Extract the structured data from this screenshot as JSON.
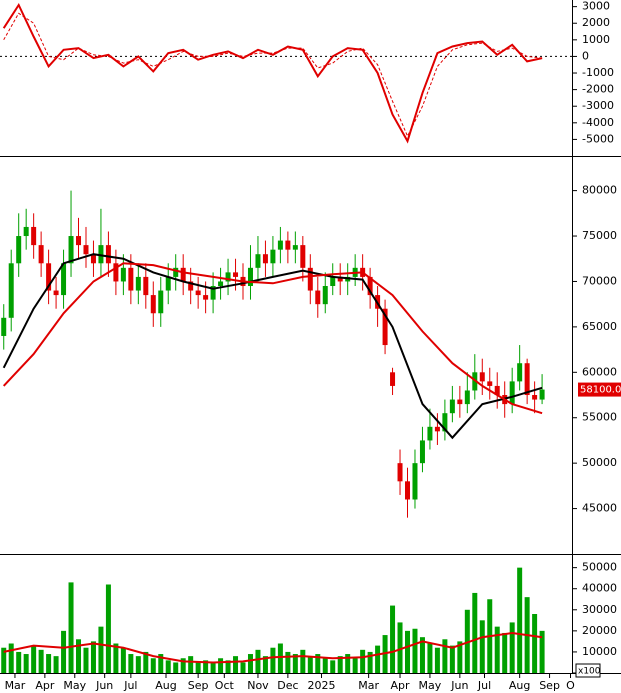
{
  "chart_data": [
    {
      "type": "line",
      "xlim": [
        -0.5,
        76
      ],
      "x": [
        0,
        2,
        4,
        6,
        8,
        10,
        12,
        14,
        16,
        18,
        20,
        22,
        24,
        26,
        28,
        30,
        32,
        34,
        36,
        38,
        40,
        42,
        44,
        46,
        48,
        50,
        52,
        54,
        56,
        58,
        60,
        62,
        64,
        66,
        68,
        70,
        72
      ],
      "series": [
        {
          "color": "#e00000",
          "dashed": false,
          "values": [
            1700,
            3100,
            1200,
            -600,
            400,
            500,
            -100,
            100,
            -600,
            0,
            -900,
            200,
            400,
            -200,
            100,
            300,
            -100,
            400,
            100,
            600,
            400,
            -1200,
            0,
            500,
            400,
            -1000,
            -3500,
            -5100,
            -2200,
            200,
            600,
            800,
            900,
            100,
            700,
            -300,
            -100
          ]
        },
        {
          "color": "#e00000",
          "dashed": true,
          "values": [
            1000,
            2600,
            2000,
            0,
            -200,
            500,
            100,
            0,
            -400,
            -200,
            -600,
            -200,
            300,
            0,
            0,
            200,
            0,
            200,
            200,
            500,
            500,
            -700,
            -400,
            300,
            500,
            -500,
            -2700,
            -4800,
            -3000,
            -600,
            400,
            700,
            800,
            300,
            500,
            0,
            -100
          ]
        }
      ],
      "reference_line": 0,
      "ylim": [
        -6000,
        3400
      ],
      "yticks": [
        3000,
        2000,
        1000,
        0,
        -1000,
        -2000,
        -3000,
        -4000,
        -5000
      ]
    },
    {
      "type": "candlestick",
      "xlim": [
        -0.5,
        76
      ],
      "up_color": "#00a000",
      "down_color": "#e00000",
      "open": [
        64000,
        66000,
        72000,
        75000,
        76000,
        74000,
        72000,
        69000,
        68500,
        72000,
        75000,
        74000,
        73000,
        72000,
        74000,
        72000,
        70000,
        71500,
        69000,
        70500,
        68500,
        66500,
        69000,
        70500,
        71500,
        70000,
        69000,
        68500,
        68000,
        69500,
        70000,
        71000,
        70500,
        69500,
        71500,
        73000,
        72000,
        73500,
        74500,
        73500,
        74000,
        71500,
        69000,
        67500,
        69500,
        70500,
        70000,
        70500,
        71500,
        70500,
        68500,
        67000,
        60000,
        50000,
        48000,
        46000,
        50000,
        52500,
        54000,
        53500,
        55500,
        57000,
        56500,
        58000,
        60000,
        59000,
        58500,
        57500,
        56500,
        59000,
        61000,
        57500,
        57000
      ],
      "high": [
        67500,
        73500,
        77500,
        78000,
        77500,
        75500,
        73500,
        70500,
        73500,
        80000,
        77000,
        76000,
        74500,
        78000,
        75500,
        73500,
        73000,
        73000,
        72000,
        72000,
        70000,
        70500,
        72000,
        73000,
        73000,
        71500,
        70500,
        70000,
        71000,
        71500,
        72500,
        72500,
        72000,
        74000,
        75000,
        74500,
        75000,
        76000,
        75500,
        75500,
        75000,
        73000,
        70500,
        71000,
        72000,
        72000,
        72000,
        73000,
        73000,
        71500,
        69500,
        68000,
        60500,
        51500,
        49500,
        51500,
        54000,
        56000,
        55500,
        57000,
        58500,
        58500,
        60000,
        62000,
        61500,
        60500,
        60000,
        59000,
        60500,
        63000,
        61500,
        59000,
        59800
      ],
      "low": [
        62500,
        64500,
        70500,
        73500,
        72500,
        70500,
        67500,
        67000,
        67000,
        70500,
        72500,
        71500,
        70500,
        70500,
        70500,
        68500,
        68500,
        67500,
        67500,
        67000,
        65000,
        65000,
        67500,
        69000,
        68500,
        67500,
        67000,
        66500,
        66500,
        68000,
        68500,
        69000,
        68000,
        68000,
        70000,
        70500,
        70500,
        72000,
        72000,
        72000,
        70000,
        67500,
        66000,
        66500,
        68500,
        68500,
        68500,
        69500,
        69000,
        67000,
        65000,
        62000,
        57500,
        46500,
        44000,
        45000,
        49000,
        51500,
        52000,
        52500,
        54500,
        55000,
        55500,
        57000,
        57500,
        57000,
        56000,
        55000,
        55500,
        58000,
        56500,
        55500,
        56500
      ],
      "close": [
        66000,
        72000,
        75000,
        76000,
        74000,
        72000,
        69000,
        68500,
        72000,
        75000,
        74000,
        73000,
        72000,
        74000,
        72000,
        70000,
        71500,
        69000,
        70500,
        68500,
        66500,
        69000,
        70500,
        71500,
        70000,
        69000,
        68500,
        68000,
        69500,
        70000,
        71000,
        70500,
        69500,
        71500,
        73000,
        72000,
        73500,
        74500,
        73500,
        74000,
        71500,
        69000,
        67500,
        69500,
        70500,
        70000,
        70500,
        71500,
        70500,
        68500,
        67000,
        63000,
        58500,
        48000,
        46000,
        50000,
        52500,
        54000,
        53500,
        55500,
        57000,
        56500,
        58000,
        60000,
        59000,
        58500,
        57500,
        56500,
        59000,
        61000,
        57500,
        57000,
        58100
      ],
      "last_label": "58100.00",
      "overlays": [
        {
          "color": "#000000",
          "x": [
            0,
            4,
            8,
            12,
            16,
            20,
            24,
            28,
            32,
            36,
            40,
            44,
            48,
            52,
            56,
            60,
            64,
            68,
            72
          ],
          "values": [
            60500,
            67000,
            72000,
            73000,
            72500,
            71000,
            70000,
            69200,
            69800,
            70500,
            71200,
            70500,
            70200,
            65000,
            56500,
            52800,
            56500,
            57300,
            58300
          ]
        },
        {
          "color": "#e00000",
          "x": [
            0,
            4,
            8,
            12,
            16,
            20,
            24,
            28,
            32,
            36,
            40,
            44,
            48,
            52,
            56,
            60,
            64,
            68,
            72
          ],
          "values": [
            58500,
            62000,
            66500,
            70000,
            72000,
            71800,
            71000,
            70500,
            70000,
            69800,
            70500,
            70800,
            71000,
            68500,
            64500,
            61000,
            58500,
            56500,
            55500
          ]
        }
      ],
      "ylim": [
        40000,
        83700
      ],
      "yticks": [
        80000,
        75000,
        70000,
        65000,
        60000,
        55000,
        50000,
        45000
      ]
    },
    {
      "type": "bar",
      "xlim": [
        -0.5,
        76
      ],
      "color": "#00a000",
      "values": [
        12000,
        14000,
        10000,
        9000,
        13000,
        11000,
        9000,
        8000,
        20000,
        43000,
        16000,
        12000,
        15000,
        22000,
        42000,
        14000,
        12000,
        9000,
        8000,
        10000,
        7000,
        9000,
        6000,
        5000,
        7000,
        8000,
        5000,
        6000,
        5000,
        7000,
        6000,
        8000,
        5000,
        9000,
        11000,
        8000,
        12000,
        14000,
        10000,
        9000,
        11000,
        8000,
        9000,
        7000,
        6000,
        8000,
        9000,
        7000,
        11000,
        10000,
        13000,
        18000,
        32000,
        24000,
        20000,
        21000,
        17000,
        14000,
        12000,
        16000,
        13000,
        15000,
        30000,
        38000,
        25000,
        35000,
        22000,
        19000,
        24000,
        50000,
        36000,
        28000,
        20000
      ],
      "overlays": [
        {
          "color": "#e00000",
          "x": [
            0,
            4,
            8,
            12,
            16,
            20,
            24,
            28,
            32,
            36,
            40,
            44,
            48,
            52,
            56,
            60,
            64,
            68,
            72
          ],
          "values": [
            10000,
            13000,
            12000,
            14000,
            12000,
            8000,
            5500,
            5000,
            5500,
            7500,
            8000,
            7000,
            7500,
            10000,
            15000,
            12000,
            17000,
            19000,
            17000
          ]
        }
      ],
      "unit_label": "x100",
      "ylim": [
        0,
        56000
      ],
      "yticks": [
        50000,
        40000,
        30000,
        20000,
        10000,
        0
      ],
      "xticks": [
        {
          "value": 1.5,
          "label": "Mar"
        },
        {
          "value": 5.5,
          "label": "Apr"
        },
        {
          "value": 9.5,
          "label": "May"
        },
        {
          "value": 13.5,
          "label": "Jun"
        },
        {
          "value": 17,
          "label": "Jul"
        },
        {
          "value": 21.7,
          "label": "Aug"
        },
        {
          "value": 26,
          "label": "Sep"
        },
        {
          "value": 29.5,
          "label": "Oct"
        },
        {
          "value": 34,
          "label": "Nov"
        },
        {
          "value": 38,
          "label": "Dec"
        },
        {
          "value": 42.5,
          "label": "2025"
        },
        {
          "value": 48.8,
          "label": "Mar"
        },
        {
          "value": 53,
          "label": "Apr"
        },
        {
          "value": 57,
          "label": "May"
        },
        {
          "value": 61,
          "label": "Jun"
        },
        {
          "value": 64.3,
          "label": "Jul"
        },
        {
          "value": 69,
          "label": "Aug"
        },
        {
          "value": 73,
          "label": "Sep"
        },
        {
          "value": 75.8,
          "label": "O"
        }
      ]
    }
  ]
}
